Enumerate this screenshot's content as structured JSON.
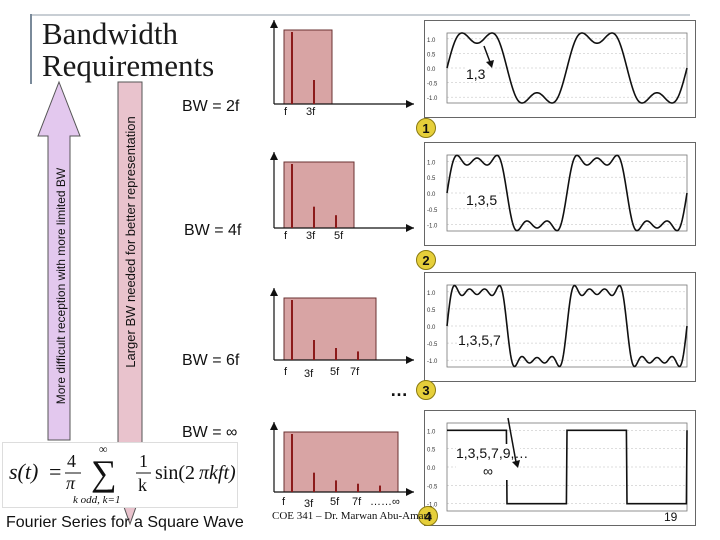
{
  "slide": {
    "title_line1": "Bandwidth",
    "title_line2": "Requirements",
    "left_arrow_text": "More difficult reception with more limited BW",
    "right_arrow_text": "Larger BW needed for better representation",
    "caption": "Fourier Series for a Square Wave",
    "footer": "COE 341 – Dr. Marwan Abu-Amara",
    "page_number": "19",
    "equation_text": "s(t) = 4/π Σ_{k odd, k=1}^{∞} (1/k) sin(2πkft)"
  },
  "rows": [
    {
      "bw_label": "BW = 2f",
      "harmonics": "1,3",
      "badge": "1",
      "freq_labels": [
        "f",
        "3f"
      ],
      "spectrum": [
        1,
        0.3333
      ],
      "ellipsis": ""
    },
    {
      "bw_label": "BW = 4f",
      "harmonics": "1,3,5",
      "badge": "2",
      "freq_labels": [
        "f",
        "3f",
        "5f"
      ],
      "spectrum": [
        1,
        0.3333,
        0.2
      ],
      "ellipsis": ""
    },
    {
      "bw_label": "BW = 6f",
      "harmonics": "1,3,5,7",
      "badge": "3",
      "freq_labels": [
        "f",
        "3f",
        "5f",
        "7f"
      ],
      "spectrum": [
        1,
        0.3333,
        0.2,
        0.1429
      ],
      "ellipsis": "…"
    },
    {
      "bw_label": "BW = ∞",
      "harmonics": "1,3,5,7,9,…∞",
      "badge": "4",
      "freq_labels": [
        "f",
        "3f",
        "5f",
        "7f",
        "……∞"
      ],
      "spectrum": [
        1,
        0.3333,
        0.2,
        0.1429,
        0.1111
      ],
      "ellipsis": ""
    }
  ],
  "colors": {
    "spectrum_fill": "#d8a4a4",
    "spectrum_bar": "#8b1a1a",
    "left_arrow_fill": "#e3c8ee",
    "right_arrow_fill": "#e9c3cd",
    "badge": "#e6cf3a"
  }
}
